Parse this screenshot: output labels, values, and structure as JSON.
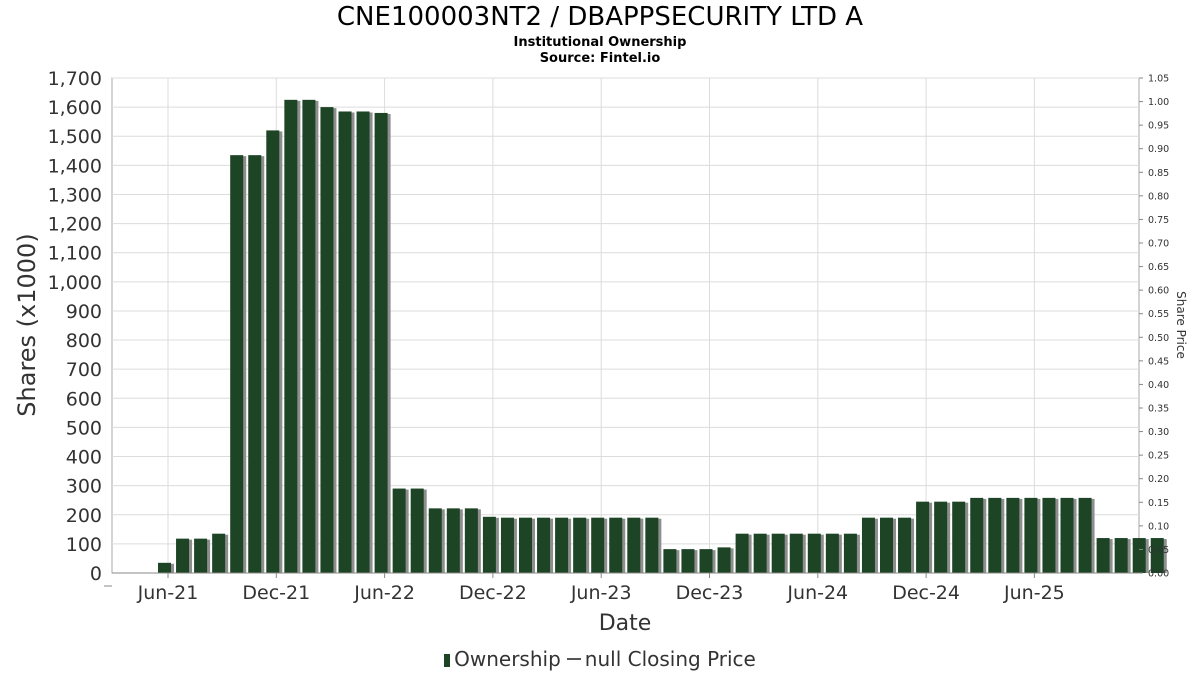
{
  "title": "CNE100003NT2 / DBAPPSECURITY LTD A",
  "subtitle": "Institutional Ownership",
  "source": "Source: Fintel.io",
  "legend": {
    "ownership": "Ownership",
    "price": "null Closing Price"
  },
  "colors": {
    "bar": "#1c4425",
    "bar_shadow": "#8e8e8e",
    "grid": "#dcdcdc",
    "axis": "#888888"
  },
  "chart_data": {
    "type": "bar",
    "xlabel": "Date",
    "ylabel": "Shares (x1000)",
    "y2label": "Share Price",
    "ylim": [
      0,
      1700
    ],
    "y2lim": [
      0,
      1.05
    ],
    "grid": true,
    "legend_position": "bottom",
    "yticks": [
      "0",
      "100",
      "200",
      "300",
      "400",
      "500",
      "600",
      "700",
      "800",
      "900",
      "1,000",
      "1,100",
      "1,200",
      "1,300",
      "1,400",
      "1,500",
      "1,600",
      "1,700"
    ],
    "y2ticks": [
      "0.00",
      "0.05",
      "0.10",
      "0.15",
      "0.20",
      "0.25",
      "0.30",
      "0.35",
      "0.40",
      "0.45",
      "0.50",
      "0.55",
      "0.60",
      "0.65",
      "0.70",
      "0.75",
      "0.80",
      "0.85",
      "0.90",
      "0.95",
      "1.00",
      "1.05"
    ],
    "xticks": [
      "Jun-21",
      "Dec-21",
      "Jun-22",
      "Dec-22",
      "Jun-23",
      "Dec-23",
      "Jun-24",
      "Dec-24",
      "Jun-25"
    ],
    "series": [
      {
        "name": "Ownership",
        "values": [
          35,
          118,
          118,
          135,
          1435,
          1435,
          1520,
          1625,
          1625,
          1600,
          1585,
          1585,
          1580,
          290,
          290,
          222,
          222,
          222,
          193,
          190,
          190,
          190,
          190,
          190,
          190,
          190,
          190,
          190,
          82,
          82,
          82,
          88,
          135,
          135,
          135,
          135,
          135,
          135,
          135,
          190,
          190,
          190,
          245,
          245,
          245,
          258,
          258,
          258,
          258,
          258,
          258,
          258,
          120,
          120,
          120,
          120
        ]
      }
    ]
  }
}
